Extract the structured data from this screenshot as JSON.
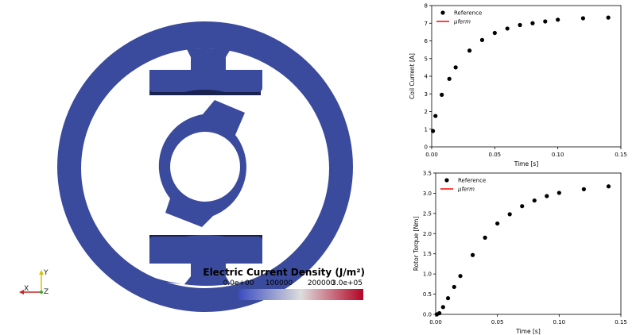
{
  "viewport": {
    "colorbar": {
      "title": "Electric Current Density (J/m²)",
      "ticks": [
        "0.0e+00",
        "100000",
        "200000",
        "3.0e+05"
      ],
      "range": [
        0,
        300000
      ],
      "color_low": "#3b4cc0",
      "color_mid": "#dddddd",
      "color_high": "#b40426"
    },
    "axes_triad": {
      "x": "X",
      "y": "Y",
      "z": "Z"
    },
    "model_color": "#3a4a9c",
    "model_shadow_color": "#1a2250"
  },
  "chart_data": [
    {
      "type": "scatter",
      "xlabel": "Time [s]",
      "ylabel": "Coil Current [A]",
      "xlim": [
        0,
        0.15
      ],
      "ylim": [
        0,
        8
      ],
      "xticks": [
        0.0,
        0.05,
        0.1,
        0.15
      ],
      "xtick_labels": [
        "0.00",
        "0.05",
        "0.10",
        "0.15"
      ],
      "yticks": [
        0,
        1,
        2,
        3,
        4,
        5,
        6,
        7,
        8
      ],
      "ytick_labels": [
        "0",
        "1",
        "2",
        "3",
        "4",
        "5",
        "6",
        "7",
        "8"
      ],
      "legend_position": "top-left",
      "series": [
        {
          "name": "Reference",
          "kind": "markers",
          "color": "#000000",
          "x": [
            0.001,
            0.003,
            0.008,
            0.014,
            0.019,
            0.03,
            0.04,
            0.05,
            0.06,
            0.07,
            0.08,
            0.09,
            0.1,
            0.12,
            0.14
          ],
          "y": [
            0.9,
            1.75,
            2.95,
            3.85,
            4.5,
            5.45,
            6.05,
            6.45,
            6.7,
            6.9,
            7.0,
            7.1,
            7.2,
            7.28,
            7.32
          ]
        },
        {
          "name": "μferm",
          "kind": "line",
          "color": "#ff0000",
          "x": [],
          "y": []
        }
      ]
    },
    {
      "type": "scatter",
      "xlabel": "Time [s]",
      "ylabel": "Rotor Torque [Nm]",
      "xlim": [
        0,
        0.15
      ],
      "ylim": [
        0,
        3.5
      ],
      "xticks": [
        0.0,
        0.05,
        0.1,
        0.15
      ],
      "xtick_labels": [
        "0.00",
        "0.05",
        "0.10",
        "0.15"
      ],
      "yticks": [
        0,
        0.5,
        1,
        1.5,
        2,
        2.5,
        3,
        3.5
      ],
      "ytick_labels": [
        "0.0",
        "0.5",
        "1.0",
        "1.5",
        "2.0",
        "2.5",
        "3.0",
        "3.5"
      ],
      "legend_position": "top-left",
      "series": [
        {
          "name": "Reference",
          "kind": "markers",
          "color": "#000000",
          "x": [
            0.001,
            0.003,
            0.006,
            0.01,
            0.015,
            0.02,
            0.03,
            0.04,
            0.05,
            0.06,
            0.07,
            0.08,
            0.09,
            0.1,
            0.12,
            0.14
          ],
          "y": [
            0.0,
            0.03,
            0.18,
            0.4,
            0.68,
            0.95,
            1.47,
            1.9,
            2.25,
            2.48,
            2.68,
            2.82,
            2.93,
            3.01,
            3.1,
            3.17
          ]
        },
        {
          "name": "μferm",
          "kind": "line",
          "color": "#ff0000",
          "x": [],
          "y": []
        }
      ]
    }
  ]
}
